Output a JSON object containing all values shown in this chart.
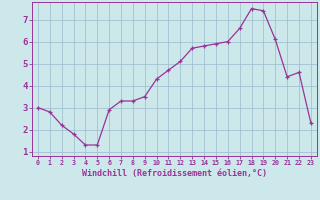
{
  "x": [
    0,
    1,
    2,
    3,
    4,
    5,
    6,
    7,
    8,
    9,
    10,
    11,
    12,
    13,
    14,
    15,
    16,
    17,
    18,
    19,
    20,
    21,
    22,
    23
  ],
  "y": [
    3.0,
    2.8,
    2.2,
    1.8,
    1.3,
    1.3,
    2.9,
    3.3,
    3.3,
    3.5,
    4.3,
    4.7,
    5.1,
    5.7,
    5.8,
    5.9,
    6.0,
    6.6,
    7.5,
    7.4,
    6.1,
    4.4,
    4.6,
    2.3
  ],
  "line_color": "#993399",
  "marker": "+",
  "bg_color": "#cce8ea",
  "grid_color": "#99bbcc",
  "axis_color": "#993399",
  "tick_color": "#993399",
  "xlabel": "Windchill (Refroidissement éolien,°C)",
  "ylim": [
    0.8,
    7.8
  ],
  "xlim": [
    -0.5,
    23.5
  ],
  "yticks": [
    1,
    2,
    3,
    4,
    5,
    6,
    7
  ],
  "xticks": [
    0,
    1,
    2,
    3,
    4,
    5,
    6,
    7,
    8,
    9,
    10,
    11,
    12,
    13,
    14,
    15,
    16,
    17,
    18,
    19,
    20,
    21,
    22,
    23
  ],
  "xlabel_fontsize": 6.0,
  "xtick_fontsize": 4.8,
  "ytick_fontsize": 6.5
}
